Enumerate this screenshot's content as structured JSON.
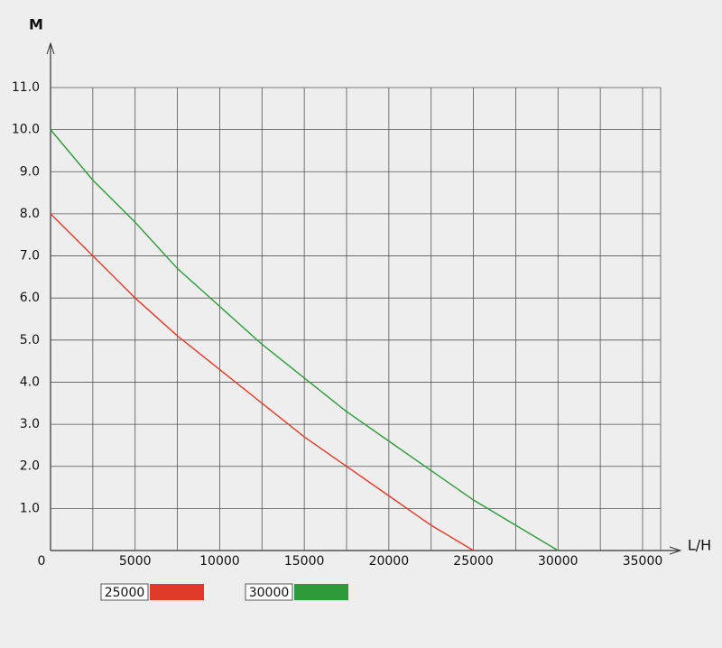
{
  "chart_data": {
    "type": "line",
    "y_label": "M",
    "x_label": "L/H",
    "xlim": [
      0,
      35000
    ],
    "ylim": [
      0,
      11
    ],
    "xticks": [
      0,
      5000,
      10000,
      15000,
      20000,
      25000,
      30000,
      35000
    ],
    "x_minor_ticks": [
      2500,
      7500,
      12500,
      17500,
      22500,
      27500,
      32500
    ],
    "yticks": [
      {
        "value": 1,
        "label": "1.0"
      },
      {
        "value": 2,
        "label": "2.0"
      },
      {
        "value": 3,
        "label": "3.0"
      },
      {
        "value": 4,
        "label": "4.0"
      },
      {
        "value": 5,
        "label": "5.0"
      },
      {
        "value": 6,
        "label": "6.0"
      },
      {
        "value": 7,
        "label": "7.0"
      },
      {
        "value": 8,
        "label": "8.0"
      },
      {
        "value": 9,
        "label": "9.0"
      },
      {
        "value": 10,
        "label": "10.0"
      },
      {
        "value": 11,
        "label": "11.0"
      }
    ],
    "grid": true,
    "series": [
      {
        "name": "25000",
        "color": "#e03a2a",
        "x": [
          0,
          2500,
          5000,
          7500,
          10000,
          12500,
          15000,
          17500,
          20000,
          22500,
          25000
        ],
        "values": [
          8,
          7,
          6,
          5.1,
          4.3,
          3.5,
          2.7,
          2.0,
          1.3,
          0.6,
          0
        ]
      },
      {
        "name": "30000",
        "color": "#2e9a3a",
        "x": [
          0,
          2500,
          5000,
          7500,
          10000,
          12500,
          15000,
          17500,
          20000,
          22500,
          25000,
          27500,
          30000
        ],
        "values": [
          10,
          8.8,
          7.8,
          6.7,
          5.8,
          4.9,
          4.1,
          3.3,
          2.6,
          1.9,
          1.2,
          0.6,
          0
        ]
      }
    ]
  }
}
